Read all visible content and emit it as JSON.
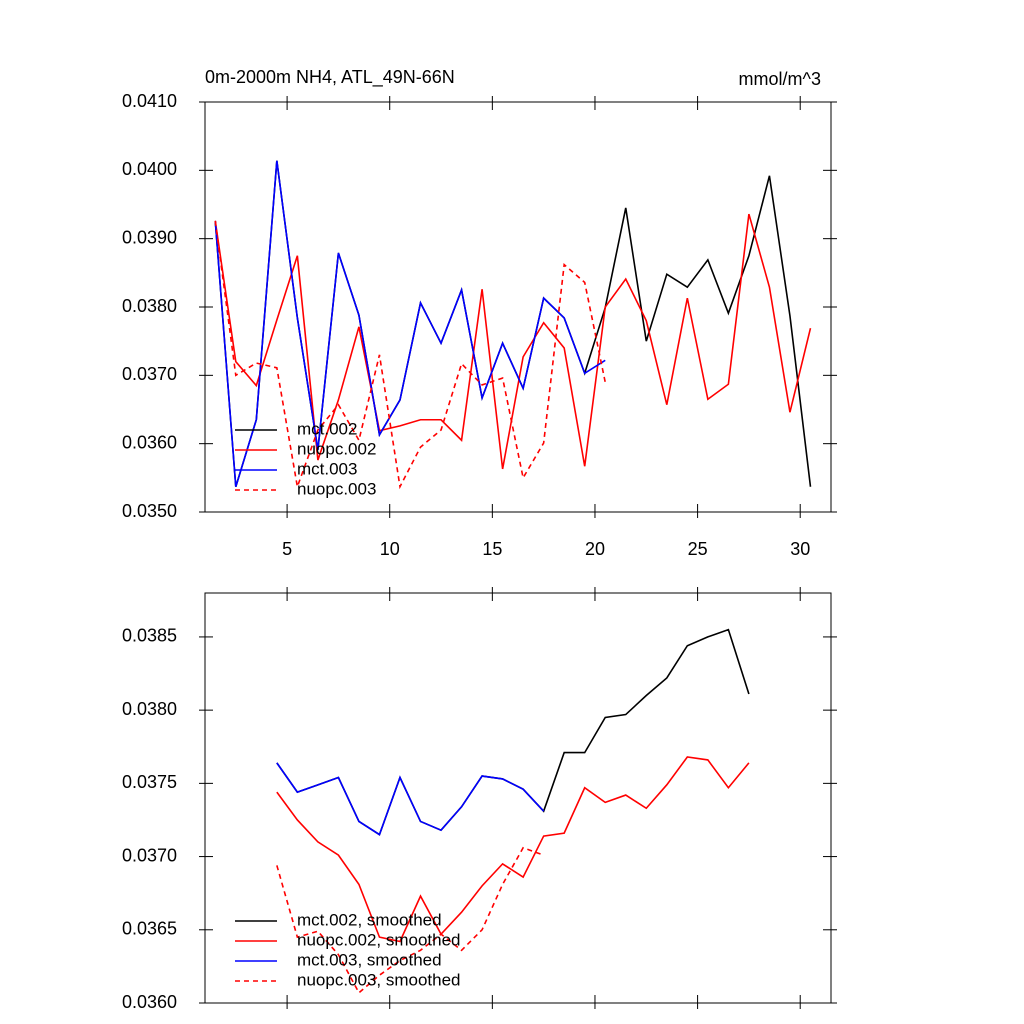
{
  "chart_data": [
    {
      "type": "line",
      "title": "0m-2000m NH4, ATL_49N-66N",
      "subtitle": "mmol/m^3",
      "x": [
        1.5,
        2.5,
        3.5,
        4.5,
        5.5,
        6.5,
        7.5,
        8.5,
        9.5,
        10.5,
        11.5,
        12.5,
        13.5,
        14.5,
        15.5,
        16.5,
        17.5,
        18.5,
        19.5,
        20.5,
        21.5,
        22.5,
        23.5,
        24.5,
        25.5,
        26.5,
        27.5,
        28.5,
        29.5,
        30.5
      ],
      "series": [
        {
          "name": "mct.002",
          "color": "#000000",
          "linestyle": "solid",
          "values": [
            0.03926,
            0.03537,
            0.03635,
            0.04014,
            0.03784,
            0.03591,
            0.03879,
            0.03788,
            0.03613,
            0.03664,
            0.03806,
            0.03747,
            0.03825,
            0.03667,
            0.03747,
            0.03681,
            0.03813,
            0.03784,
            0.03703,
            0.03799,
            0.03945,
            0.0375,
            0.03848,
            0.03829,
            0.03869,
            0.03791,
            0.03875,
            0.03992,
            0.03787,
            0.03537
          ]
        },
        {
          "name": "nuopc.002",
          "color": "#ff0000",
          "linestyle": "solid",
          "values": [
            0.03926,
            0.0372,
            0.03685,
            0.03781,
            0.03875,
            0.03576,
            0.03664,
            0.03771,
            0.03619,
            0.03626,
            0.03635,
            0.03635,
            0.03605,
            0.03826,
            0.03563,
            0.03727,
            0.03777,
            0.0374,
            0.03567,
            0.038,
            0.03841,
            0.0378,
            0.03657,
            0.03813,
            0.03665,
            0.03687,
            0.03936,
            0.03829,
            0.03646,
            0.03769
          ]
        },
        {
          "name": "mct.003",
          "color": "#0000ff",
          "linestyle": "solid",
          "values": [
            0.03926,
            0.03537,
            0.03635,
            0.04014,
            0.03784,
            0.03591,
            0.03879,
            0.03788,
            0.03613,
            0.03664,
            0.03806,
            0.03747,
            0.03825,
            0.03667,
            0.03747,
            0.03681,
            0.03813,
            0.03784,
            0.03703,
            0.03722,
            null,
            null,
            null,
            null,
            null,
            null,
            null,
            null,
            null,
            null
          ]
        },
        {
          "name": "nuopc.003",
          "color": "#ff0000",
          "linestyle": "dashed",
          "values": [
            0.03926,
            0.037,
            0.03718,
            0.03711,
            0.03537,
            0.0362,
            0.03657,
            0.03605,
            0.0373,
            0.03537,
            0.03595,
            0.0362,
            0.03717,
            0.03686,
            0.03696,
            0.0355,
            0.03601,
            0.03862,
            0.03836,
            0.0369,
            null,
            null,
            null,
            null,
            null,
            null,
            null,
            null,
            null,
            null
          ]
        }
      ],
      "xlim": [
        1,
        31.5
      ],
      "xticks": [
        5,
        10,
        15,
        20,
        25,
        30
      ],
      "xticklabels": true,
      "ylim": [
        0.035,
        0.041
      ],
      "yticks": [
        {
          "value": 0.035,
          "label": "0.0350"
        },
        {
          "value": 0.036,
          "label": "0.0360"
        },
        {
          "value": 0.037,
          "label": "0.0370"
        },
        {
          "value": 0.038,
          "label": "0.0380"
        },
        {
          "value": 0.039,
          "label": "0.0390"
        },
        {
          "value": 0.04,
          "label": "0.0400"
        },
        {
          "value": 0.041,
          "label": "0.0410"
        }
      ],
      "legend": "lower left"
    },
    {
      "type": "line",
      "x": [
        4.5,
        5.5,
        6.5,
        7.5,
        8.5,
        9.5,
        10.5,
        11.5,
        12.5,
        13.5,
        14.5,
        15.5,
        16.5,
        17.5,
        18.5,
        19.5,
        20.5,
        21.5,
        22.5,
        23.5,
        24.5,
        25.5,
        26.5,
        27.5
      ],
      "series": [
        {
          "name": "mct.002, smoothed",
          "color": "#000000",
          "linestyle": "solid",
          "values": [
            0.03764,
            0.03744,
            0.03749,
            0.03754,
            0.03724,
            0.03715,
            0.03754,
            0.03724,
            0.03718,
            0.03734,
            0.03755,
            0.03753,
            0.03746,
            0.03731,
            0.03771,
            0.03771,
            0.03795,
            0.03797,
            0.0381,
            0.03822,
            0.03844,
            0.0385,
            0.03855,
            0.03811
          ]
        },
        {
          "name": "nuopc.002, smoothed",
          "color": "#ff0000",
          "linestyle": "solid",
          "values": [
            0.03744,
            0.03725,
            0.0371,
            0.03701,
            0.03681,
            0.03645,
            0.03642,
            0.03673,
            0.03647,
            0.03662,
            0.0368,
            0.03695,
            0.03686,
            0.03714,
            0.03716,
            0.03747,
            0.03737,
            0.03742,
            0.03733,
            0.03749,
            0.03768,
            0.03766,
            0.03747,
            0.03764
          ]
        },
        {
          "name": "mct.003, smoothed",
          "color": "#0000ff",
          "linestyle": "solid",
          "values": [
            0.03764,
            0.03744,
            0.03749,
            0.03754,
            0.03724,
            0.03715,
            0.03754,
            0.03724,
            0.03718,
            0.03734,
            0.03755,
            0.03753,
            0.03746,
            0.03731,
            null,
            null,
            null,
            null,
            null,
            null,
            null,
            null,
            null,
            null
          ]
        },
        {
          "name": "nuopc.003, smoothed",
          "color": "#ff0000",
          "linestyle": "dashed",
          "values": [
            0.03694,
            0.03645,
            0.03649,
            0.03633,
            0.03607,
            0.03619,
            0.03629,
            0.03636,
            0.03647,
            0.03636,
            0.0365,
            0.03681,
            0.03706,
            0.03701,
            null,
            null,
            null,
            null,
            null,
            null,
            null,
            null,
            null,
            null
          ]
        }
      ],
      "xlim": [
        1,
        31.5
      ],
      "xticks": [
        5,
        10,
        15,
        20,
        25,
        30
      ],
      "xticklabels": false,
      "ylim": [
        0.036,
        0.0388
      ],
      "yticks": [
        {
          "value": 0.036,
          "label": "0.0360"
        },
        {
          "value": 0.0365,
          "label": "0.0365"
        },
        {
          "value": 0.037,
          "label": "0.0370"
        },
        {
          "value": 0.0375,
          "label": "0.0375"
        },
        {
          "value": 0.038,
          "label": "0.0380"
        },
        {
          "value": 0.0385,
          "label": "0.0385"
        }
      ],
      "legend": "lower left"
    }
  ]
}
